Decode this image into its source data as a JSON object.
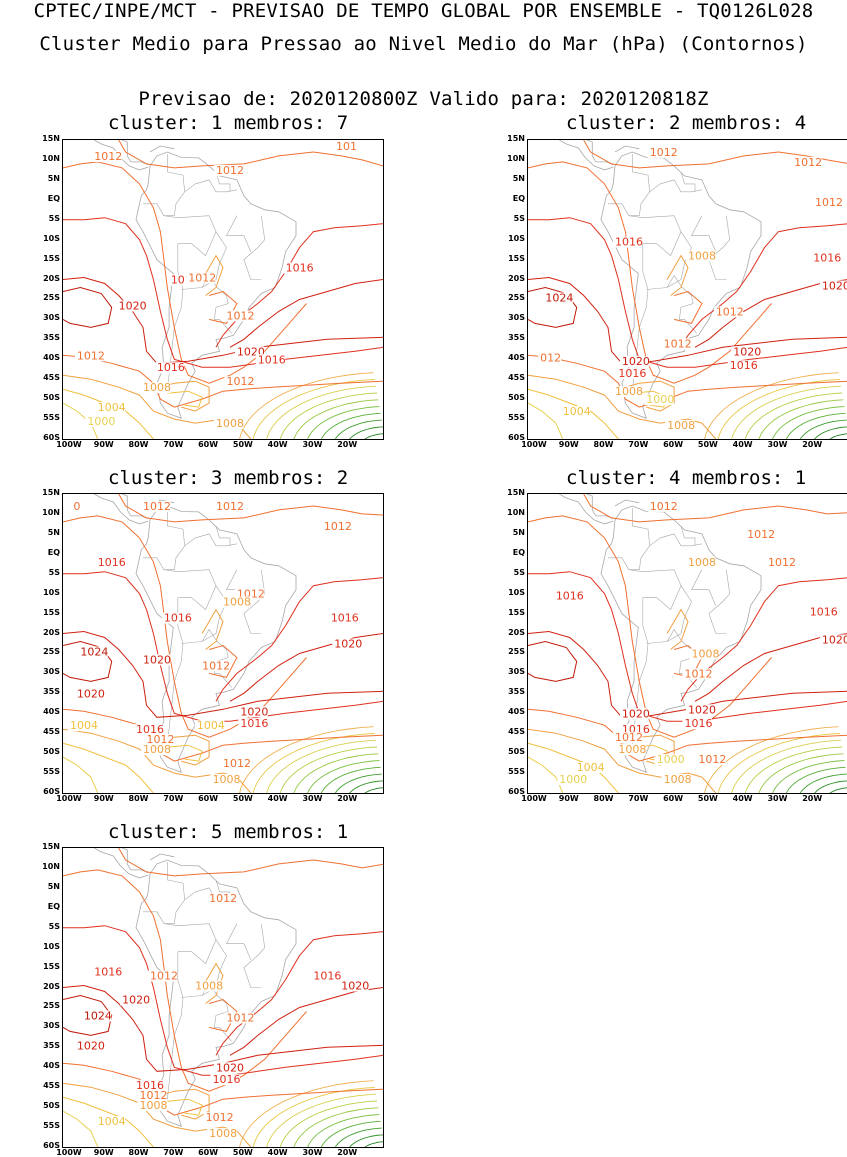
{
  "header": {
    "line1": "CPTEC/INPE/MCT - PREVISAO DE TEMPO GLOBAL POR ENSEMBLE - TQ0126L028",
    "line2": "Cluster Medio para Pressao ao Nivel Medio do Mar (hPa) (Contornos)",
    "line3": "Previsao de: 2020120800Z    Valido para: 2020120818Z"
  },
  "axes": {
    "lat_labels": [
      "15N",
      "10N",
      "5N",
      "EQ",
      "5S",
      "10S",
      "15S",
      "20S",
      "25S",
      "30S",
      "35S",
      "40S",
      "45S",
      "50S",
      "55S",
      "60S"
    ],
    "lon_labels": [
      "100W",
      "90W",
      "80W",
      "70W",
      "60W",
      "50W",
      "40W",
      "30W",
      "20W"
    ]
  },
  "colors": {
    "c1016": "#e0301e",
    "c1020": "#d02010",
    "c1024": "#c01808",
    "c1012": "#f07030",
    "c1008": "#f0a040",
    "c1004": "#f0c040",
    "c1000": "#e8d050",
    "low": "#a0d040",
    "coast": "#a8a8a8"
  },
  "panels": [
    {
      "id": "p1",
      "title": "cluster: 1   membros: 7",
      "labels": [
        {
          "text": "1012",
          "lon": -93,
          "lat": 10
        },
        {
          "text": "1012",
          "lon": -58,
          "lat": 6.5
        },
        {
          "text": "101",
          "lon": -23.5,
          "lat": 12.5
        },
        {
          "text": "1016",
          "lon": -71,
          "lat": -21
        },
        {
          "text": "1012",
          "lon": -66,
          "lat": -20.5
        },
        {
          "text": "1016",
          "lon": -38,
          "lat": -18
        },
        {
          "text": "1020",
          "lon": -86,
          "lat": -27.5
        },
        {
          "text": "1012",
          "lon": -55,
          "lat": -30
        },
        {
          "text": "1012",
          "lon": -98,
          "lat": -40
        },
        {
          "text": "1020",
          "lon": -52,
          "lat": -39
        },
        {
          "text": "1016",
          "lon": -46,
          "lat": -41
        },
        {
          "text": "1016",
          "lon": -75,
          "lat": -43
        },
        {
          "text": "1012",
          "lon": -55,
          "lat": -46.5
        },
        {
          "text": "1008",
          "lon": -79,
          "lat": -48
        },
        {
          "text": "1004",
          "lon": -92,
          "lat": -53
        },
        {
          "text": "1000",
          "lon": -95,
          "lat": -56.5
        },
        {
          "text": "1008",
          "lon": -58,
          "lat": -57
        }
      ]
    },
    {
      "id": "p2",
      "title": "cluster: 2   membros: 4",
      "labels": [
        {
          "text": "1012",
          "lon": -67,
          "lat": 11
        },
        {
          "text": "1012",
          "lon": -25.5,
          "lat": 8.5
        },
        {
          "text": "1012",
          "lon": -19.5,
          "lat": -1.5
        },
        {
          "text": "1016",
          "lon": -77,
          "lat": -11.5
        },
        {
          "text": "1008",
          "lon": -56,
          "lat": -15
        },
        {
          "text": "1016",
          "lon": -20,
          "lat": -15.5
        },
        {
          "text": "1020",
          "lon": -17.5,
          "lat": -22.5
        },
        {
          "text": "1024",
          "lon": -97,
          "lat": -25.5
        },
        {
          "text": "1012",
          "lon": -48,
          "lat": -29
        },
        {
          "text": "1012",
          "lon": -63,
          "lat": -37
        },
        {
          "text": "1020",
          "lon": -43,
          "lat": -39
        },
        {
          "text": "012",
          "lon": -98.5,
          "lat": -40.5
        },
        {
          "text": "1020",
          "lon": -75,
          "lat": -41.5
        },
        {
          "text": "1016",
          "lon": -44,
          "lat": -42.5
        },
        {
          "text": "1016",
          "lon": -76,
          "lat": -44.5
        },
        {
          "text": "1008",
          "lon": -77,
          "lat": -49
        },
        {
          "text": "1000",
          "lon": -68,
          "lat": -51
        },
        {
          "text": "1004",
          "lon": -92,
          "lat": -54
        },
        {
          "text": "1008",
          "lon": -62,
          "lat": -57.5
        }
      ]
    },
    {
      "id": "p3",
      "title": "cluster: 3   membros: 2",
      "labels": [
        {
          "text": "0",
          "lon": -99,
          "lat": 11
        },
        {
          "text": "1012",
          "lon": -79,
          "lat": 11
        },
        {
          "text": "1012",
          "lon": -58,
          "lat": 11
        },
        {
          "text": "1012",
          "lon": -27,
          "lat": 6
        },
        {
          "text": "1016",
          "lon": -92,
          "lat": -3
        },
        {
          "text": "1012",
          "lon": -52,
          "lat": -11
        },
        {
          "text": "1008",
          "lon": -56,
          "lat": -13
        },
        {
          "text": "1016",
          "lon": -73,
          "lat": -17
        },
        {
          "text": "1016",
          "lon": -25,
          "lat": -17
        },
        {
          "text": "1020",
          "lon": -24,
          "lat": -23.5
        },
        {
          "text": "1024",
          "lon": -97,
          "lat": -25.5
        },
        {
          "text": "1020",
          "lon": -79,
          "lat": -27.5
        },
        {
          "text": "1012",
          "lon": -62,
          "lat": -29
        },
        {
          "text": "1020",
          "lon": -98,
          "lat": -36
        },
        {
          "text": "1020",
          "lon": -51,
          "lat": -40.5
        },
        {
          "text": "1016",
          "lon": -51,
          "lat": -43.5
        },
        {
          "text": "1004",
          "lon": -100,
          "lat": -44
        },
        {
          "text": "1004",
          "lon": -63.5,
          "lat": -44
        },
        {
          "text": "1016",
          "lon": -81,
          "lat": -45
        },
        {
          "text": "1012",
          "lon": -78,
          "lat": -47.5
        },
        {
          "text": "1008",
          "lon": -79,
          "lat": -50
        },
        {
          "text": "1012",
          "lon": -56,
          "lat": -53.5
        },
        {
          "text": "1008",
          "lon": -59,
          "lat": -57.5
        }
      ]
    },
    {
      "id": "p4",
      "title": "cluster: 4   membros: 1",
      "labels": [
        {
          "text": "1012",
          "lon": -67,
          "lat": 11
        },
        {
          "text": "1012",
          "lon": -39,
          "lat": 4
        },
        {
          "text": "1008",
          "lon": -56,
          "lat": -3
        },
        {
          "text": "1012",
          "lon": -33,
          "lat": -3
        },
        {
          "text": "1016",
          "lon": -94,
          "lat": -11.5
        },
        {
          "text": "1016",
          "lon": -21,
          "lat": -15.5
        },
        {
          "text": "1020",
          "lon": -17.5,
          "lat": -22.5
        },
        {
          "text": "1008",
          "lon": -55,
          "lat": -26
        },
        {
          "text": "1012",
          "lon": -57,
          "lat": -31
        },
        {
          "text": "1020",
          "lon": -75,
          "lat": -41
        },
        {
          "text": "1020",
          "lon": -56,
          "lat": -40
        },
        {
          "text": "1016",
          "lon": -57,
          "lat": -43.5
        },
        {
          "text": "1016",
          "lon": -75,
          "lat": -45
        },
        {
          "text": "1012",
          "lon": -77,
          "lat": -47
        },
        {
          "text": "1008",
          "lon": -76,
          "lat": -50
        },
        {
          "text": "1000",
          "lon": -65,
          "lat": -52.5
        },
        {
          "text": "1012",
          "lon": -53,
          "lat": -52.5
        },
        {
          "text": "1004",
          "lon": -88,
          "lat": -54.5
        },
        {
          "text": "1000",
          "lon": -93,
          "lat": -57.5
        },
        {
          "text": "1008",
          "lon": -63,
          "lat": -57.5
        }
      ]
    },
    {
      "id": "p5",
      "title": "cluster: 5   membros: 1",
      "labels": [
        {
          "text": "1012",
          "lon": -60,
          "lat": 1.5
        },
        {
          "text": "1016",
          "lon": -93,
          "lat": -17
        },
        {
          "text": "1012",
          "lon": -77,
          "lat": -18
        },
        {
          "text": "1016",
          "lon": -30,
          "lat": -18
        },
        {
          "text": "1008",
          "lon": -64,
          "lat": -20.5
        },
        {
          "text": "1020",
          "lon": -22,
          "lat": -20.5
        },
        {
          "text": "1020",
          "lon": -85,
          "lat": -24
        },
        {
          "text": "1024",
          "lon": -96,
          "lat": -28
        },
        {
          "text": "1012",
          "lon": -55,
          "lat": -28.5
        },
        {
          "text": "1020",
          "lon": -98,
          "lat": -35.5
        },
        {
          "text": "1020",
          "lon": -58,
          "lat": -41
        },
        {
          "text": "1016",
          "lon": -59,
          "lat": -44
        },
        {
          "text": "1016",
          "lon": -81,
          "lat": -45.5
        },
        {
          "text": "1012",
          "lon": -80,
          "lat": -48
        },
        {
          "text": "1008",
          "lon": -80,
          "lat": -50.5
        },
        {
          "text": "1004",
          "lon": -92,
          "lat": -54.5
        },
        {
          "text": "1012",
          "lon": -61,
          "lat": -53.5
        },
        {
          "text": "1008",
          "lon": -60,
          "lat": -57.5
        }
      ]
    }
  ]
}
